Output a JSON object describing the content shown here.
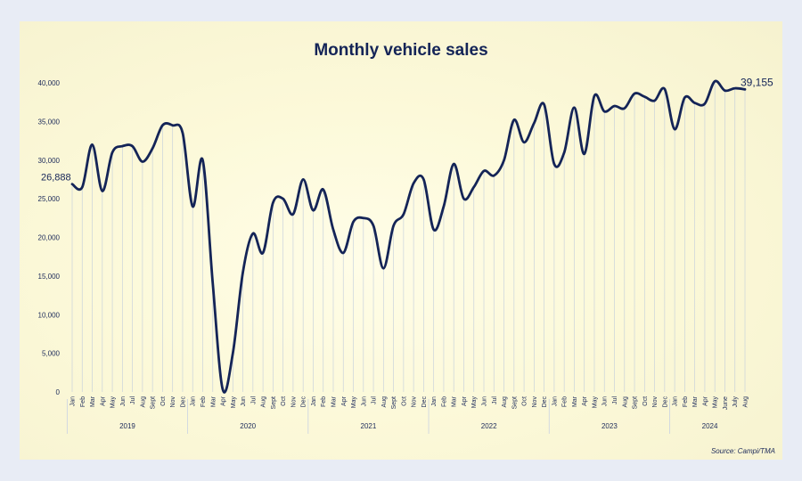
{
  "chart_data": {
    "type": "line",
    "title": "Monthly vehicle sales",
    "source": "Source: Campi/TMA",
    "ylim": [
      0,
      40000
    ],
    "y_ticks": [
      "0",
      "5,000",
      "10,000",
      "15,000",
      "20,000",
      "25,000",
      "30,000",
      "35,000",
      "40,000"
    ],
    "x": [
      "Jan",
      "Feb",
      "Mar",
      "Apr",
      "May",
      "Jun",
      "Jul",
      "Aug",
      "Sept",
      "Oct",
      "Nov",
      "Dec",
      "Jan",
      "Feb",
      "Mar",
      "Apr",
      "May",
      "Jun",
      "Jul",
      "Aug",
      "Sept",
      "Oct",
      "Nov",
      "Dec",
      "Jan",
      "Feb",
      "Mar",
      "Apr",
      "May",
      "Jun",
      "Jul",
      "Aug",
      "Sept",
      "Oct",
      "Nov",
      "Dec",
      "Jan",
      "Feb",
      "Mar",
      "Apr",
      "May",
      "Jun",
      "Jul",
      "Aug",
      "Sept",
      "Oct",
      "Nov",
      "Dec",
      "Jan",
      "Feb",
      "Mar",
      "Apr",
      "May",
      "Jun",
      "Jul",
      "Aug",
      "Sept",
      "Oct",
      "Nov",
      "Dec",
      "Jan",
      "Feb",
      "Mar",
      "Apr",
      "May",
      "June",
      "July",
      "Aug"
    ],
    "years": [
      {
        "label": "2019",
        "months": 12
      },
      {
        "label": "2020",
        "months": 12
      },
      {
        "label": "2021",
        "months": 12
      },
      {
        "label": "2022",
        "months": 12
      },
      {
        "label": "2023",
        "months": 12
      },
      {
        "label": "2024",
        "months": 8
      }
    ],
    "values": [
      26888,
      26500,
      32000,
      26000,
      31000,
      31800,
      31800,
      29800,
      31500,
      34500,
      34500,
      33500,
      24000,
      30000,
      14000,
      300,
      5000,
      15500,
      20500,
      18000,
      24500,
      25000,
      23000,
      27500,
      23500,
      26200,
      21000,
      18000,
      22000,
      22500,
      21500,
      16000,
      21500,
      23000,
      27000,
      27500,
      21000,
      24000,
      29500,
      25000,
      26500,
      28600,
      28000,
      30000,
      35200,
      32300,
      34800,
      37200,
      29500,
      31000,
      36800,
      30800,
      38300,
      36300,
      37000,
      36700,
      38600,
      38200,
      37700,
      39200,
      34000,
      38100,
      37400,
      37300,
      40200,
      39000,
      39300,
      39155
    ],
    "start_label": "26,888",
    "end_label": "39,155",
    "grid": false,
    "colors": {
      "line": "#142457",
      "drop": "#b8c6dc"
    }
  }
}
